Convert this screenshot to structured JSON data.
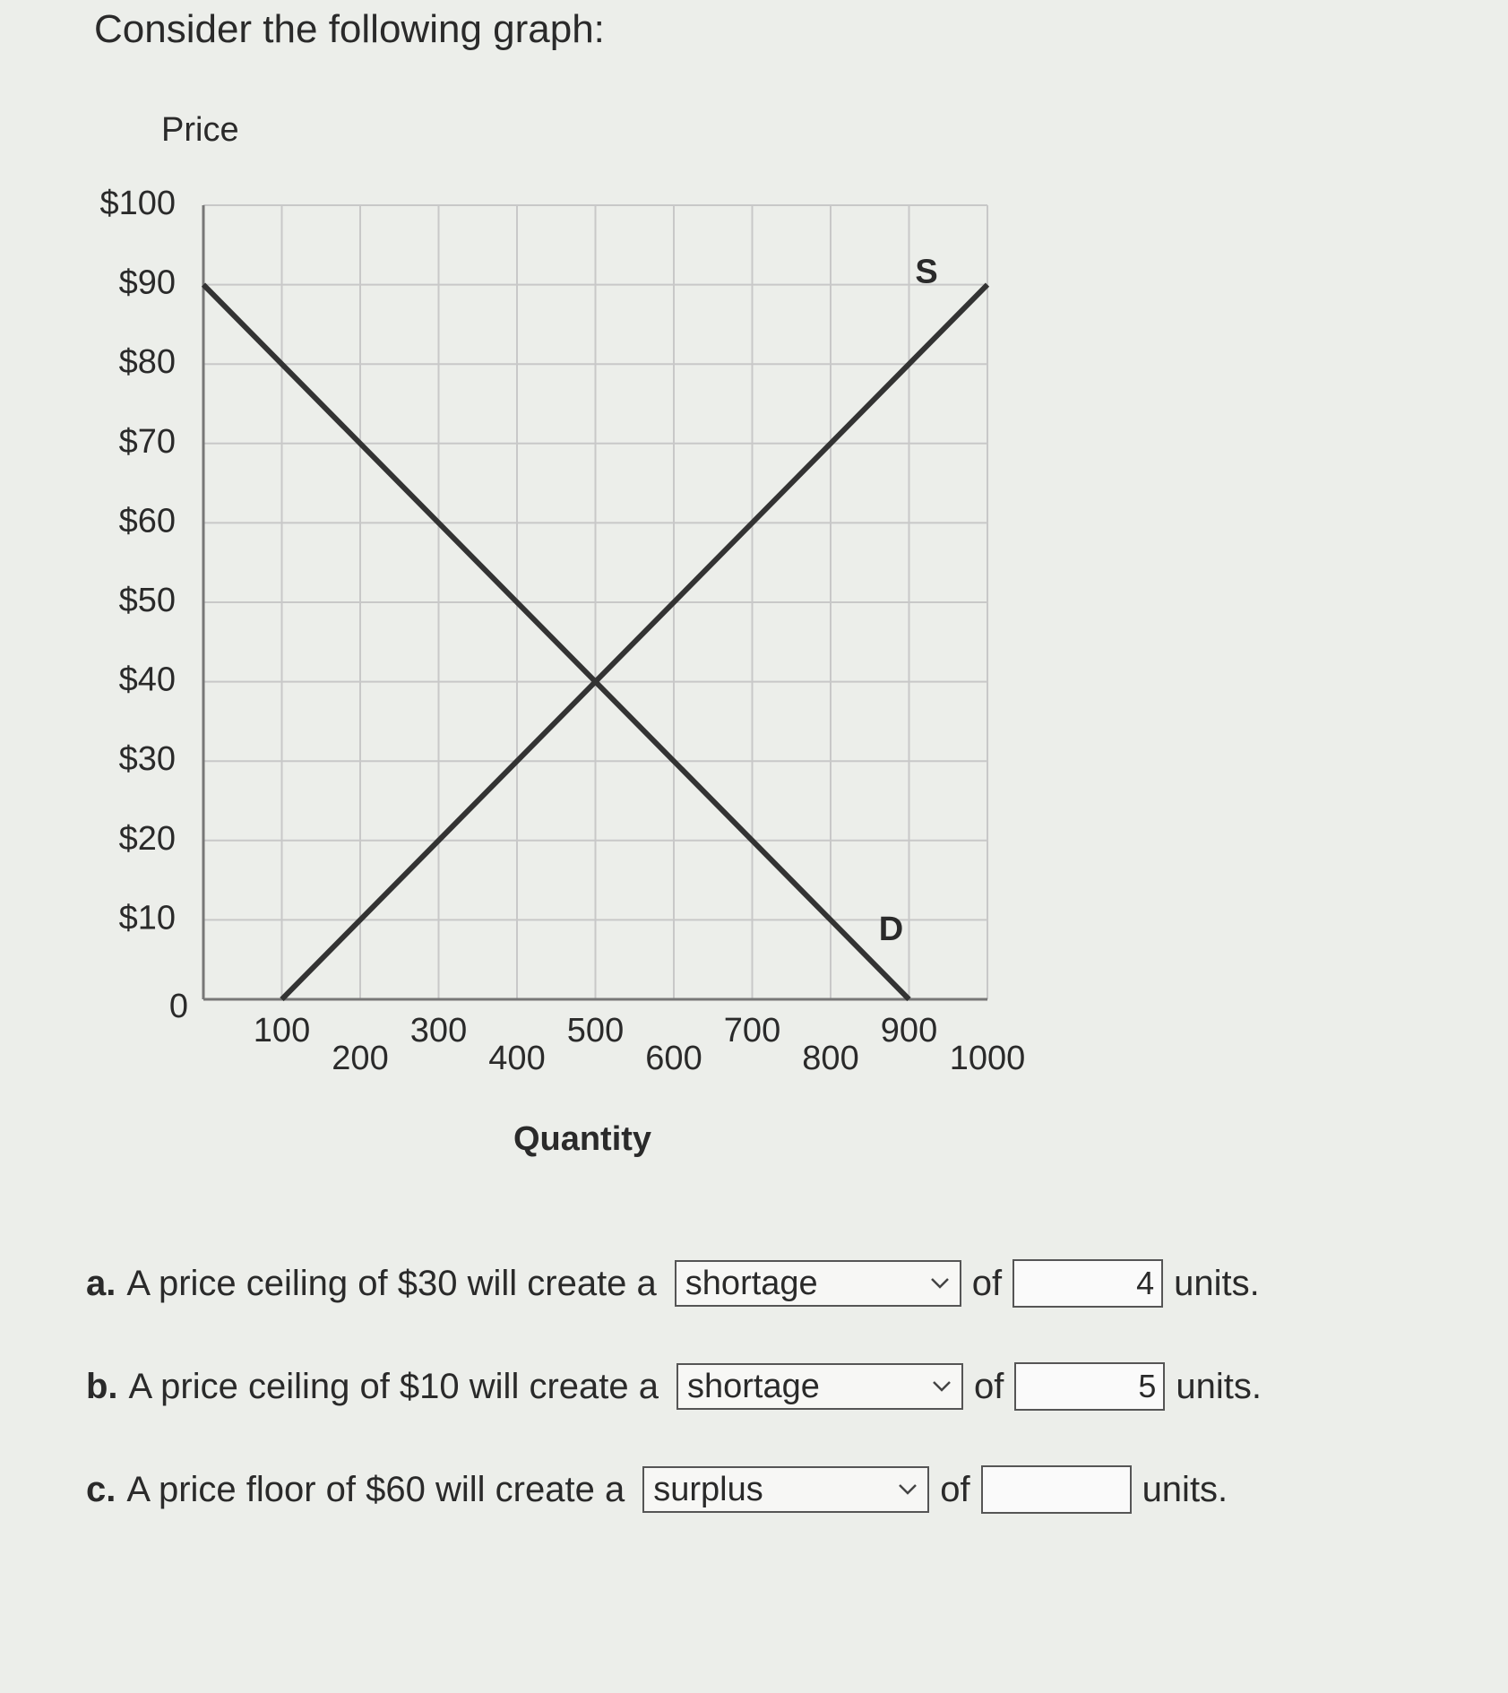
{
  "header": {
    "title": "Consider the following graph:"
  },
  "chart_data": {
    "type": "line",
    "y_label": "Price",
    "x_label": "Quantity",
    "xlim": [
      0,
      1000
    ],
    "ylim": [
      0,
      100
    ],
    "xticks": [
      100,
      200,
      300,
      400,
      500,
      600,
      700,
      800,
      900,
      1000
    ],
    "yticks": [
      0,
      {
        "value": 10,
        "label": "$10"
      },
      {
        "value": 20,
        "label": "$20"
      },
      {
        "value": 30,
        "label": "$30"
      },
      {
        "value": 40,
        "label": "$40"
      },
      {
        "value": 50,
        "label": "$50"
      },
      {
        "value": 60,
        "label": "$60"
      },
      {
        "value": 70,
        "label": "$70"
      },
      {
        "value": 80,
        "label": "$80"
      },
      {
        "value": 90,
        "label": "$90"
      },
      {
        "value": 100,
        "label": "$100"
      }
    ],
    "grid": true,
    "series": [
      {
        "name": "S",
        "color": "#333333",
        "x": [
          100,
          1000
        ],
        "values": [
          0,
          90
        ]
      },
      {
        "name": "D",
        "color": "#333333",
        "x": [
          0,
          900
        ],
        "values": [
          90,
          0
        ]
      }
    ]
  },
  "questions": [
    {
      "label": "a.",
      "text": "A price ceiling of $30 will create a",
      "choice": "shortage",
      "of": "of",
      "answer": "4",
      "units": "units."
    },
    {
      "label": "b.",
      "text": "A price ceiling of $10 will create a",
      "choice": "shortage",
      "of": "of",
      "answer": "5",
      "units": "units."
    },
    {
      "label": "c.",
      "text": "A price floor of $60 will create a",
      "choice": "surplus",
      "of": "of",
      "units": "units."
    }
  ]
}
